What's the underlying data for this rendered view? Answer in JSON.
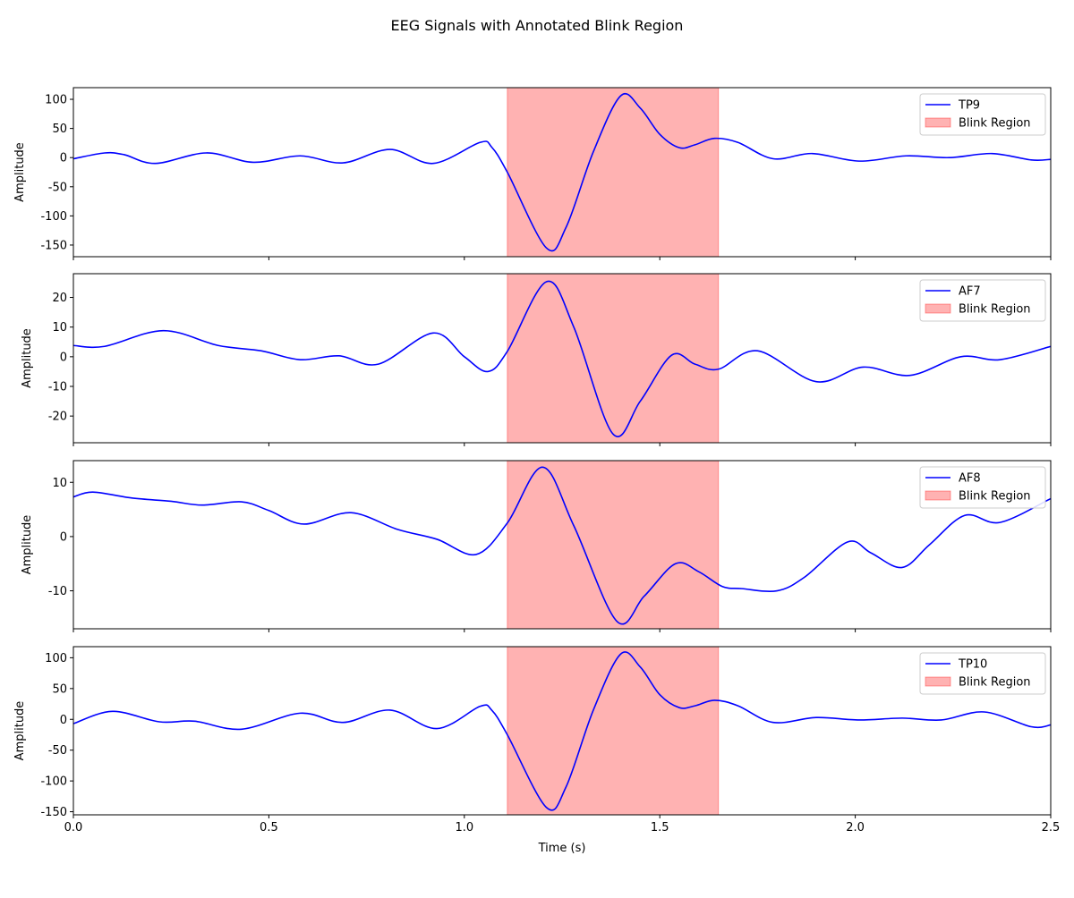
{
  "figure": {
    "title": "EEG Signals with Annotated Blink Region"
  },
  "chart_data": {
    "type": "line",
    "title": "EEG Signals with Annotated Blink Region",
    "xlabel": "Time (s)",
    "xlim": [
      0,
      2.5
    ],
    "xticks": [
      0.0,
      0.5,
      1.0,
      1.5,
      2.0,
      2.5
    ],
    "xtick_labels": [
      "0.0",
      "0.5",
      "1.0",
      "1.5",
      "2.0",
      "2.5"
    ],
    "shared_x": true,
    "line_color": "#0000ff",
    "blink_color": "#ff0000",
    "blink_opacity": 0.3,
    "blink_region": {
      "label": "Blink Region",
      "start": 1.11,
      "end": 1.65
    },
    "legend_position": "upper right",
    "panels": [
      {
        "name": "TP9",
        "ylabel": "Amplitude",
        "ylim": [
          -170,
          120
        ],
        "yticks": [
          -150,
          -100,
          -50,
          0,
          50,
          100
        ],
        "points": [
          [
            0.0,
            -2
          ],
          [
            0.08,
            8
          ],
          [
            0.13,
            5
          ],
          [
            0.21,
            -10
          ],
          [
            0.34,
            8
          ],
          [
            0.46,
            -8
          ],
          [
            0.58,
            3
          ],
          [
            0.69,
            -9
          ],
          [
            0.81,
            14
          ],
          [
            0.92,
            -10
          ],
          [
            1.04,
            26
          ],
          [
            1.07,
            18
          ],
          [
            1.11,
            -25
          ],
          [
            1.21,
            -155
          ],
          [
            1.26,
            -120
          ],
          [
            1.33,
            10
          ],
          [
            1.4,
            106
          ],
          [
            1.45,
            85
          ],
          [
            1.5,
            40
          ],
          [
            1.55,
            17
          ],
          [
            1.59,
            22
          ],
          [
            1.64,
            33
          ],
          [
            1.7,
            26
          ],
          [
            1.79,
            -2
          ],
          [
            1.89,
            7
          ],
          [
            2.01,
            -6
          ],
          [
            2.13,
            3
          ],
          [
            2.24,
            0
          ],
          [
            2.35,
            7
          ],
          [
            2.45,
            -4
          ],
          [
            2.5,
            -3
          ]
        ]
      },
      {
        "name": "AF7",
        "ylabel": "Amplitude",
        "ylim": [
          -29,
          28
        ],
        "yticks": [
          -20,
          -10,
          0,
          10,
          20
        ],
        "points": [
          [
            0.0,
            3.8
          ],
          [
            0.08,
            3.5
          ],
          [
            0.23,
            8.8
          ],
          [
            0.37,
            3.8
          ],
          [
            0.48,
            2
          ],
          [
            0.58,
            -1
          ],
          [
            0.68,
            0.3
          ],
          [
            0.78,
            -2.5
          ],
          [
            0.92,
            8
          ],
          [
            1.0,
            0
          ],
          [
            1.06,
            -5
          ],
          [
            1.11,
            1.8
          ],
          [
            1.21,
            25.3
          ],
          [
            1.28,
            10
          ],
          [
            1.38,
            -26
          ],
          [
            1.45,
            -15
          ],
          [
            1.53,
            0.5
          ],
          [
            1.59,
            -2.5
          ],
          [
            1.65,
            -4.2
          ],
          [
            1.75,
            2
          ],
          [
            1.9,
            -8.4
          ],
          [
            2.02,
            -3.5
          ],
          [
            2.14,
            -6.3
          ],
          [
            2.27,
            0
          ],
          [
            2.37,
            -1
          ],
          [
            2.5,
            3.5
          ]
        ]
      },
      {
        "name": "AF8",
        "ylabel": "Amplitude",
        "ylim": [
          -17,
          14
        ],
        "yticks": [
          -10,
          0,
          10
        ],
        "points": [
          [
            0.0,
            7.3
          ],
          [
            0.05,
            8.2
          ],
          [
            0.15,
            7.1
          ],
          [
            0.25,
            6.5
          ],
          [
            0.33,
            5.8
          ],
          [
            0.43,
            6.4
          ],
          [
            0.5,
            4.8
          ],
          [
            0.59,
            2.3
          ],
          [
            0.71,
            4.4
          ],
          [
            0.83,
            1.3
          ],
          [
            0.93,
            -0.5
          ],
          [
            1.03,
            -3.3
          ],
          [
            1.11,
            2.5
          ],
          [
            1.2,
            12.8
          ],
          [
            1.28,
            2
          ],
          [
            1.39,
            -15.6
          ],
          [
            1.46,
            -11
          ],
          [
            1.54,
            -5
          ],
          [
            1.6,
            -6.5
          ],
          [
            1.66,
            -9.2
          ],
          [
            1.71,
            -9.6
          ],
          [
            1.8,
            -10
          ],
          [
            1.87,
            -7.5
          ],
          [
            1.98,
            -1
          ],
          [
            2.04,
            -3
          ],
          [
            2.12,
            -5.7
          ],
          [
            2.19,
            -1.5
          ],
          [
            2.28,
            3.9
          ],
          [
            2.37,
            2.6
          ],
          [
            2.5,
            7
          ]
        ]
      },
      {
        "name": "TP10",
        "ylabel": "Amplitude",
        "ylim": [
          -155,
          118
        ],
        "yticks": [
          -150,
          -100,
          -50,
          0,
          50,
          100
        ],
        "points": [
          [
            0.0,
            -7
          ],
          [
            0.1,
            13
          ],
          [
            0.22,
            -4
          ],
          [
            0.31,
            -3
          ],
          [
            0.43,
            -16
          ],
          [
            0.58,
            10
          ],
          [
            0.69,
            -5
          ],
          [
            0.81,
            15
          ],
          [
            0.93,
            -15
          ],
          [
            1.04,
            21
          ],
          [
            1.07,
            15
          ],
          [
            1.11,
            -25
          ],
          [
            1.21,
            -143
          ],
          [
            1.26,
            -110
          ],
          [
            1.33,
            15
          ],
          [
            1.4,
            106
          ],
          [
            1.45,
            85
          ],
          [
            1.5,
            40
          ],
          [
            1.55,
            19
          ],
          [
            1.59,
            22
          ],
          [
            1.64,
            31
          ],
          [
            1.7,
            22
          ],
          [
            1.79,
            -5
          ],
          [
            1.9,
            3
          ],
          [
            2.01,
            -1
          ],
          [
            2.12,
            2
          ],
          [
            2.22,
            -1
          ],
          [
            2.33,
            12
          ],
          [
            2.45,
            -12
          ],
          [
            2.5,
            -9
          ]
        ]
      }
    ]
  }
}
